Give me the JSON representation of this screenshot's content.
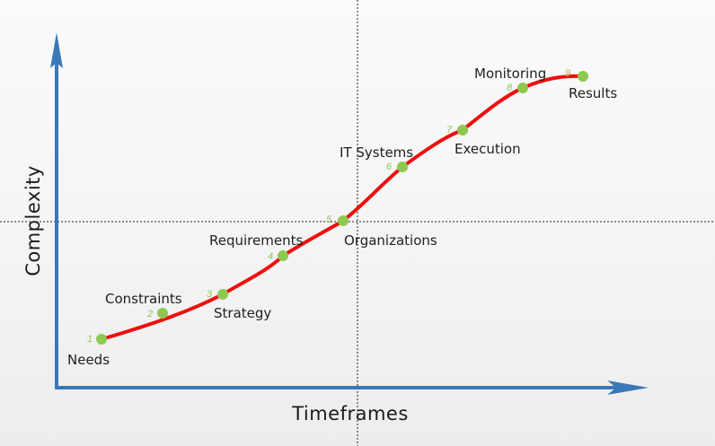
{
  "axes": {
    "x_title": "Timeframes",
    "y_title": "Complexity"
  },
  "colors": {
    "axis": "#3b78b7",
    "curve": "#ee0f0f",
    "point": "#8dc94f",
    "number": "#8fc456",
    "guide": "#222222"
  },
  "stages": [
    {
      "num": "1",
      "label": "Needs"
    },
    {
      "num": "2",
      "label": "Constraints"
    },
    {
      "num": "3",
      "label": "Strategy"
    },
    {
      "num": "4",
      "label": "Requirements"
    },
    {
      "num": "5",
      "label": "Organizations"
    },
    {
      "num": "6",
      "label": "IT Systems"
    },
    {
      "num": "7",
      "label": "Execution"
    },
    {
      "num": "8",
      "label": "Monitoring"
    },
    {
      "num": "9",
      "label": "Results"
    }
  ]
}
